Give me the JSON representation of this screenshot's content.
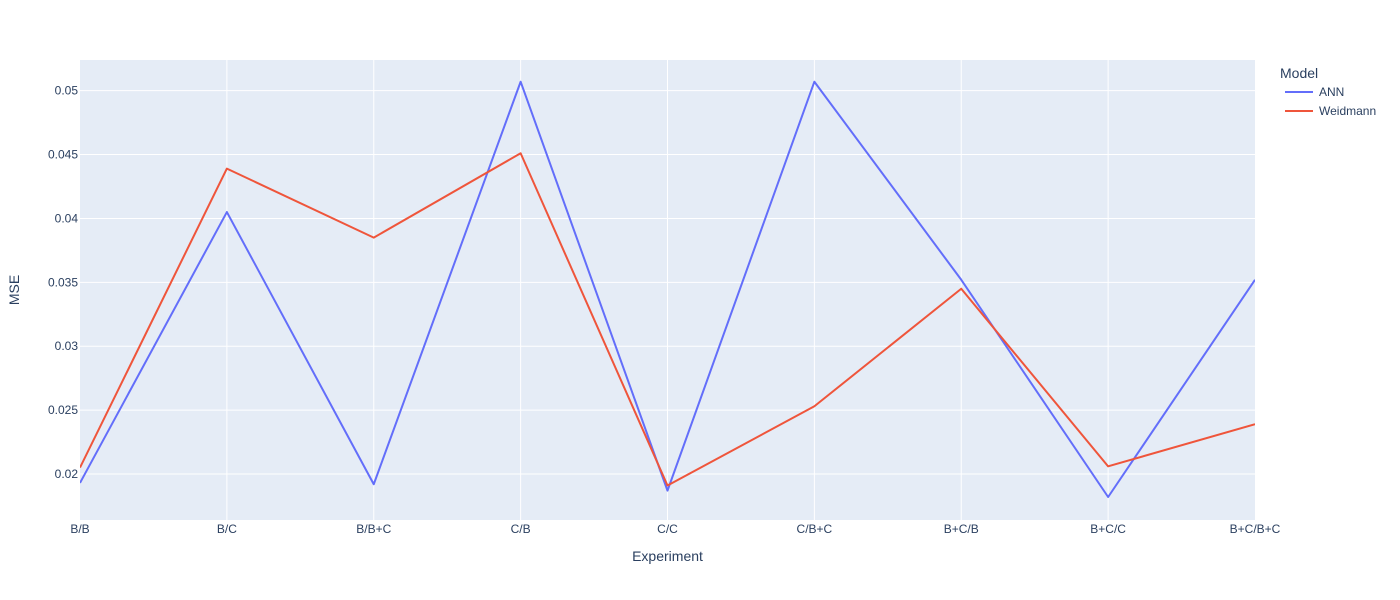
{
  "chart_data": {
    "type": "line",
    "xlabel": "Experiment",
    "ylabel": "MSE",
    "x": [
      "B/B",
      "B/C",
      "B/B+C",
      "C/B",
      "C/C",
      "C/B+C",
      "B+C/B",
      "B+C/C",
      "B+C/B+C"
    ],
    "ylim": [
      0.0164,
      0.0524
    ],
    "yticks": [
      0.02,
      0.025,
      0.03,
      0.035,
      0.04,
      0.045,
      0.05
    ],
    "ytick_labels": [
      "0.02",
      "0.025",
      "0.03",
      "0.035",
      "0.04",
      "0.045",
      "0.05"
    ],
    "grid": true,
    "legend": {
      "title": "Model",
      "placement": "top-right"
    },
    "series": [
      {
        "name": "ANN",
        "color": "#636efa",
        "values": [
          0.0193,
          0.0405,
          0.0192,
          0.0507,
          0.0187,
          0.0507,
          0.0352,
          0.0182,
          0.0352
        ]
      },
      {
        "name": "Weidmann",
        "color": "#ef553b",
        "values": [
          0.0205,
          0.0439,
          0.0385,
          0.0451,
          0.0191,
          0.0253,
          0.0345,
          0.0206,
          0.0239
        ]
      }
    ]
  }
}
